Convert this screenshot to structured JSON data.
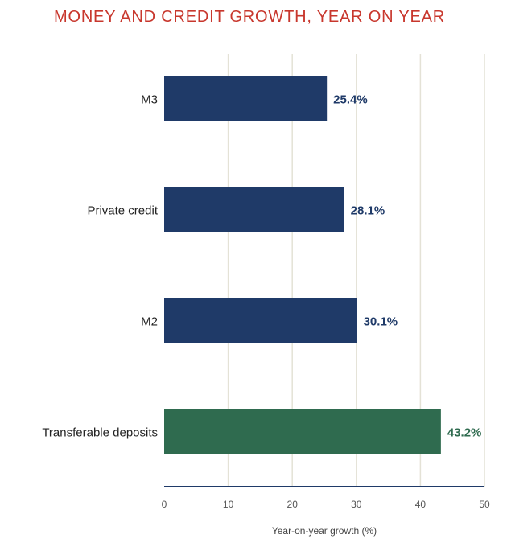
{
  "chart_data": {
    "type": "bar",
    "orientation": "horizontal",
    "title": "MONEY AND CREDIT GROWTH, YEAR ON YEAR",
    "xlabel": "Year-on-year growth (%)",
    "ylabel": "",
    "categories": [
      "M3",
      "Private credit",
      "M2",
      "Transferable deposits"
    ],
    "values": [
      25.4,
      28.1,
      30.1,
      43.2
    ],
    "value_labels": [
      "25.4%",
      "28.1%",
      "30.1%",
      "43.2%"
    ],
    "bar_colors": [
      "#1f3a68",
      "#1f3a68",
      "#1f3a68",
      "#2f6b4f"
    ],
    "xlim": [
      0,
      50
    ],
    "x_ticks": [
      0,
      10,
      20,
      30,
      40,
      50
    ],
    "x_tick_labels": [
      "0",
      "10",
      "20",
      "30",
      "40",
      "50"
    ],
    "grid": true,
    "legend": "none"
  },
  "colors": {
    "title": "#c8372d",
    "gridline": "#e4e2d6",
    "axis": "#1f3a68",
    "tick_text": "#555555",
    "category_text": "#222222",
    "xlabel_text": "#444444"
  }
}
